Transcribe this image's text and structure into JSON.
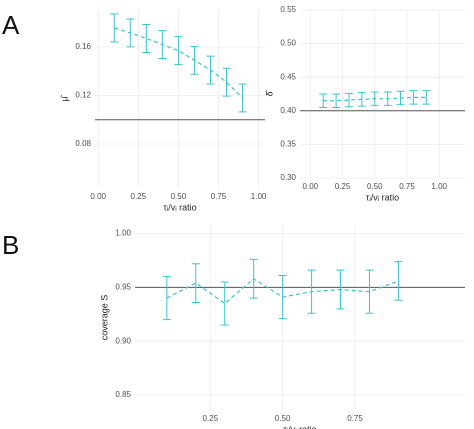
{
  "panel_labels": [
    "A",
    "B"
  ],
  "chart_data": [
    {
      "type": "line",
      "x_label": "τᵢ/vᵢ ratio",
      "y_label": "μ̂",
      "color": "#3bc4cc",
      "grid": true,
      "hline": 0.1,
      "x": [
        0.1,
        0.2,
        0.3,
        0.4,
        0.5,
        0.6,
        0.7,
        0.8,
        0.9
      ],
      "values": [
        0.1757,
        0.1716,
        0.167,
        0.162,
        0.157,
        0.149,
        0.141,
        0.131,
        0.118
      ],
      "errors": [
        0.0115,
        0.0115,
        0.0115,
        0.0115,
        0.0115,
        0.0115,
        0.0115,
        0.0115,
        0.0115
      ],
      "xlim": [
        -0.02,
        1.04
      ],
      "ylim": [
        0.0437,
        0.1905
      ],
      "xticks": [
        {
          "value": 0,
          "label": "0.00"
        },
        0.25,
        {
          "value": 0.5,
          "label": "0.50"
        },
        0.75,
        {
          "value": 1,
          "label": "1.00"
        }
      ],
      "yticks": [
        0.08,
        0.12,
        0.16
      ]
    },
    {
      "type": "line",
      "x_label": "τᵢ/vᵢ ratio",
      "y_label": "δ̂",
      "color": "#3bc4cc",
      "grid": true,
      "hline": 0.4,
      "x": [
        0.1,
        0.2,
        0.3,
        0.4,
        0.5,
        0.6,
        0.7,
        0.8,
        0.9
      ],
      "values": [
        0.415,
        0.415,
        0.416,
        0.417,
        0.418,
        0.418,
        0.419,
        0.42,
        0.42
      ],
      "errors": [
        0.01,
        0.01,
        0.01,
        0.01,
        0.01,
        0.01,
        0.01,
        0.01,
        0.01
      ],
      "xlim": [
        -0.08,
        1.2
      ],
      "ylim": [
        0.3,
        0.55
      ],
      "xticks": [
        {
          "value": 0,
          "label": "0.00"
        },
        0.25,
        {
          "value": 0.5,
          "label": "0.50"
        },
        0.75,
        {
          "value": 1,
          "label": "1.00"
        }
      ],
      "yticks": [
        {
          "value": 0.3,
          "label": "0.30"
        },
        0.35,
        {
          "value": 0.4,
          "label": "0.40"
        },
        0.45,
        {
          "value": 0.5,
          "label": "0.50"
        },
        0.55
      ]
    },
    {
      "type": "line",
      "x_label": "τᵢ/vᵢ ratio",
      "y_label": "coverage S",
      "color": "#3bc4cc",
      "grid": true,
      "hline": 0.95,
      "x": [
        0.1,
        0.2,
        0.3,
        0.4,
        0.5,
        0.6,
        0.7,
        0.8,
        0.9
      ],
      "values": [
        0.94,
        0.954,
        0.935,
        0.958,
        0.941,
        0.946,
        0.948,
        0.946,
        0.956
      ],
      "errors": [
        0.02,
        0.018,
        0.02,
        0.018,
        0.02,
        0.02,
        0.018,
        0.02,
        0.018
      ],
      "xlim": [
        -0.01,
        1.13
      ],
      "ylim": [
        0.836,
        1.008
      ],
      "xticks": [
        0.25,
        {
          "value": 0.5,
          "label": "0.50"
        },
        0.75
      ],
      "yticks": [
        0.85,
        {
          "value": 0.9,
          "label": "0.90"
        },
        0.95,
        {
          "value": 1,
          "label": "1.00"
        }
      ]
    }
  ]
}
